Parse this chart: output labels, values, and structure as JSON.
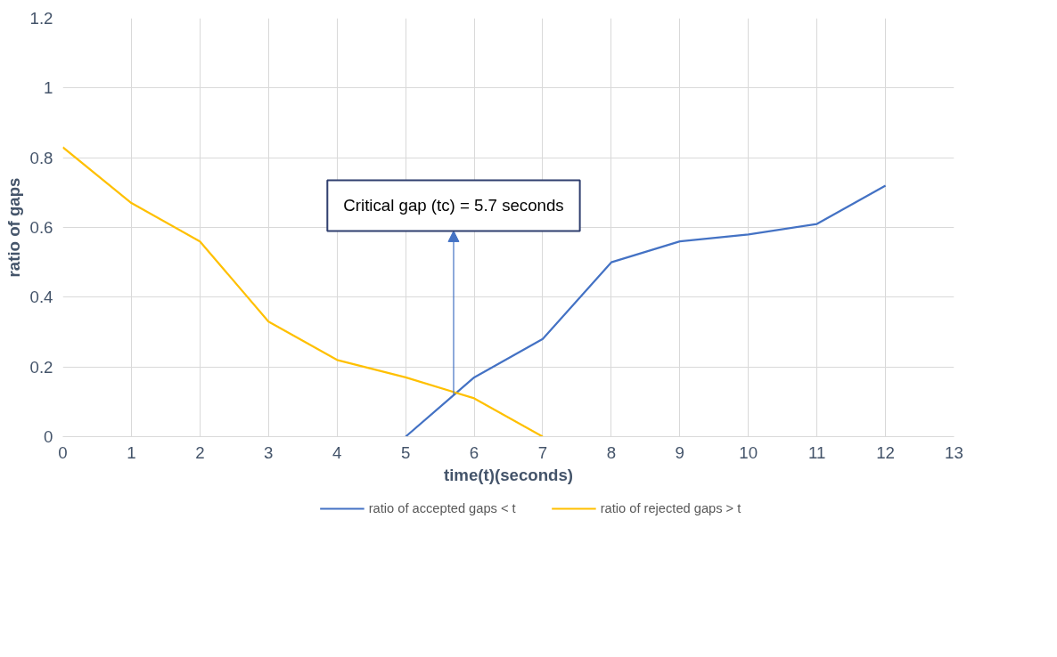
{
  "chart_data": {
    "type": "line",
    "xlabel": "time(t)(seconds)",
    "ylabel": "ratio of gaps",
    "xlim": [
      0,
      13
    ],
    "xticks": [
      0,
      1,
      2,
      3,
      4,
      5,
      6,
      7,
      8,
      9,
      10,
      11,
      12,
      13
    ],
    "ylim": [
      0,
      1.2
    ],
    "yticks": [
      0,
      0.2,
      0.4,
      0.6,
      0.8,
      1,
      1.2
    ],
    "grid": true,
    "legend": "bottom",
    "line_style": "solid",
    "marker": "none",
    "series": [
      {
        "name": "ratio of accepted gaps < t",
        "color": "#4472c4",
        "x": [
          5,
          6,
          7,
          8,
          9,
          10,
          11,
          12
        ],
        "values": [
          0,
          0.17,
          0.28,
          0.5,
          0.56,
          0.58,
          0.61,
          0.72
        ]
      },
      {
        "name": "ratio of rejected gaps > t",
        "color": "#ffc000",
        "x": [
          0,
          1,
          2,
          3,
          4,
          5,
          6,
          7
        ],
        "values": [
          0.83,
          0.67,
          0.56,
          0.33,
          0.22,
          0.17,
          0.11,
          0
        ]
      }
    ],
    "annotations": [
      {
        "text": "Critical gap (tc) = 5.7 seconds",
        "x": 5.7,
        "y": 0.12
      }
    ]
  }
}
